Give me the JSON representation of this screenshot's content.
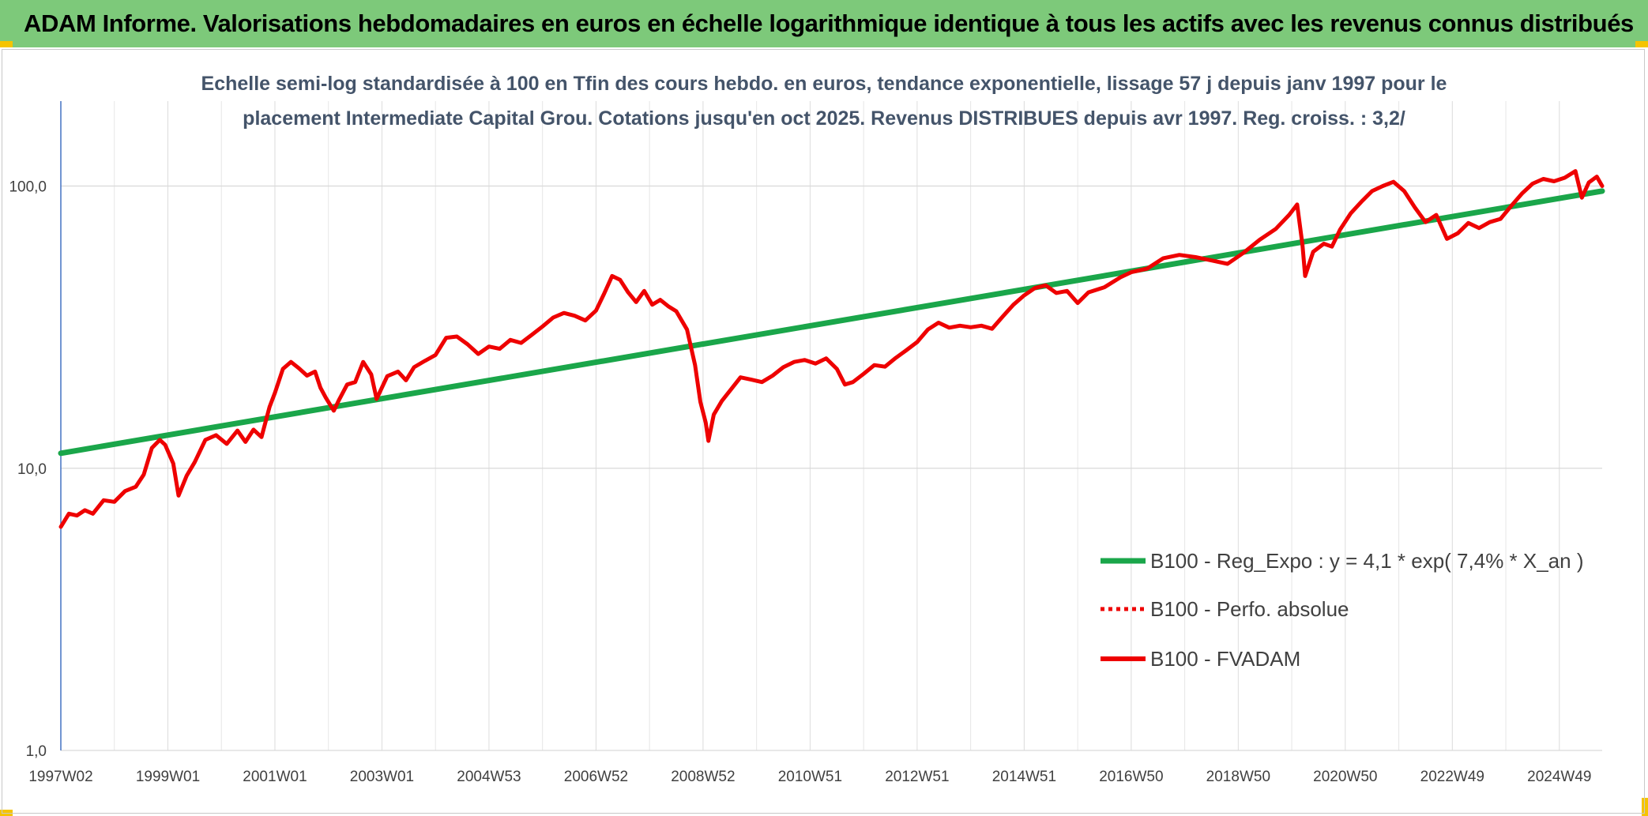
{
  "banner": {
    "title": "ADAM Informe. Valorisations hebdomadaires en euros en échelle logarithmique identique à tous les actifs avec les revenus connus distribués"
  },
  "colors": {
    "banner_bg": "#7dc97a",
    "regression": "#1aa64a",
    "series": "#ee0000",
    "corner_accent": "#f5c400"
  },
  "chart_data": {
    "type": "line",
    "title": "",
    "subtitle_lines": [
      "Echelle semi-log standardisée à 100 en Tfin des cours hebdo. en euros, tendance exponentielle, lissage 57 j depuis janv 1997 pour le",
      "placement Intermediate Capital Grou. Cotations jusqu'en oct 2025. Revenus DISTRIBUES depuis avr 1997. Reg. croiss. : 3,2/"
    ],
    "y_scale": "log",
    "ylim": [
      1,
      200
    ],
    "y_ticks": [
      {
        "value": 1,
        "label": "1,0"
      },
      {
        "value": 10,
        "label": "10,0"
      },
      {
        "value": 100,
        "label": "100,0"
      }
    ],
    "xlim": [
      1997.0,
      2025.8
    ],
    "x_ticks": [
      {
        "value": 1997.0,
        "label": "1997W02"
      },
      {
        "value": 1999.0,
        "label": "1999W01"
      },
      {
        "value": 2001.0,
        "label": "2001W01"
      },
      {
        "value": 2003.0,
        "label": "2003W01"
      },
      {
        "value": 2005.0,
        "label": "2004W53"
      },
      {
        "value": 2007.0,
        "label": "2006W52"
      },
      {
        "value": 2009.0,
        "label": "2008W52"
      },
      {
        "value": 2011.0,
        "label": "2010W51"
      },
      {
        "value": 2013.0,
        "label": "2012W51"
      },
      {
        "value": 2015.0,
        "label": "2014W51"
      },
      {
        "value": 2017.0,
        "label": "2016W50"
      },
      {
        "value": 2019.0,
        "label": "2018W50"
      },
      {
        "value": 2021.0,
        "label": "2020W50"
      },
      {
        "value": 2023.0,
        "label": "2022W49"
      },
      {
        "value": 2025.0,
        "label": "2024W49"
      }
    ],
    "grid": "vertical and horizontal",
    "legend_position": "bottom-right",
    "series": [
      {
        "name": "B100 - Reg_Expo : y = 4,1 * exp( 7,4% *  X_an )",
        "style": "solid-thick",
        "color": "#1aa64a",
        "points": [
          [
            1997.0,
            11.3
          ],
          [
            2025.8,
            96.0
          ]
        ]
      },
      {
        "name": "B100 - Perfo. absolue",
        "style": "dotted",
        "color": "#ee0000",
        "points": []
      },
      {
        "name": "B100 - FVADAM",
        "style": "solid",
        "color": "#ee0000",
        "points": [
          [
            1997.0,
            6.2
          ],
          [
            1997.15,
            6.9
          ],
          [
            1997.3,
            6.8
          ],
          [
            1997.45,
            7.1
          ],
          [
            1997.6,
            6.9
          ],
          [
            1997.8,
            7.7
          ],
          [
            1998.0,
            7.6
          ],
          [
            1998.2,
            8.3
          ],
          [
            1998.4,
            8.6
          ],
          [
            1998.55,
            9.5
          ],
          [
            1998.7,
            11.8
          ],
          [
            1998.85,
            12.6
          ],
          [
            1998.95,
            12.1
          ],
          [
            1999.1,
            10.4
          ],
          [
            1999.2,
            8.0
          ],
          [
            1999.35,
            9.4
          ],
          [
            1999.5,
            10.5
          ],
          [
            1999.7,
            12.6
          ],
          [
            1999.9,
            13.1
          ],
          [
            2000.1,
            12.2
          ],
          [
            2000.3,
            13.6
          ],
          [
            2000.45,
            12.4
          ],
          [
            2000.6,
            13.7
          ],
          [
            2000.75,
            12.9
          ],
          [
            2000.9,
            16.5
          ],
          [
            2001.0,
            18.5
          ],
          [
            2001.15,
            22.5
          ],
          [
            2001.3,
            23.8
          ],
          [
            2001.45,
            22.6
          ],
          [
            2001.6,
            21.3
          ],
          [
            2001.75,
            22.0
          ],
          [
            2001.85,
            19.3
          ],
          [
            2001.95,
            17.8
          ],
          [
            2002.1,
            16.0
          ],
          [
            2002.2,
            17.5
          ],
          [
            2002.35,
            19.8
          ],
          [
            2002.5,
            20.2
          ],
          [
            2002.65,
            23.8
          ],
          [
            2002.8,
            21.5
          ],
          [
            2002.9,
            17.6
          ],
          [
            2003.1,
            21.2
          ],
          [
            2003.3,
            22.0
          ],
          [
            2003.45,
            20.5
          ],
          [
            2003.6,
            22.8
          ],
          [
            2003.8,
            24.0
          ],
          [
            2004.0,
            25.2
          ],
          [
            2004.2,
            29.0
          ],
          [
            2004.4,
            29.3
          ],
          [
            2004.6,
            27.5
          ],
          [
            2004.8,
            25.4
          ],
          [
            2005.0,
            27.0
          ],
          [
            2005.2,
            26.5
          ],
          [
            2005.4,
            28.5
          ],
          [
            2005.6,
            27.8
          ],
          [
            2005.8,
            29.7
          ],
          [
            2006.0,
            31.8
          ],
          [
            2006.2,
            34.2
          ],
          [
            2006.4,
            35.5
          ],
          [
            2006.6,
            34.7
          ],
          [
            2006.8,
            33.4
          ],
          [
            2007.0,
            36.2
          ],
          [
            2007.15,
            41.5
          ],
          [
            2007.3,
            48.0
          ],
          [
            2007.45,
            46.5
          ],
          [
            2007.6,
            42.0
          ],
          [
            2007.75,
            38.8
          ],
          [
            2007.9,
            42.5
          ],
          [
            2008.05,
            38.0
          ],
          [
            2008.2,
            39.5
          ],
          [
            2008.35,
            37.5
          ],
          [
            2008.5,
            36.0
          ],
          [
            2008.7,
            31.0
          ],
          [
            2008.85,
            23.2
          ],
          [
            2008.95,
            17.2
          ],
          [
            2009.05,
            14.5
          ],
          [
            2009.1,
            12.5
          ],
          [
            2009.2,
            15.5
          ],
          [
            2009.35,
            17.3
          ],
          [
            2009.5,
            18.8
          ],
          [
            2009.7,
            21.0
          ],
          [
            2009.9,
            20.6
          ],
          [
            2010.1,
            20.2
          ],
          [
            2010.3,
            21.3
          ],
          [
            2010.5,
            22.8
          ],
          [
            2010.7,
            23.8
          ],
          [
            2010.9,
            24.2
          ],
          [
            2011.1,
            23.5
          ],
          [
            2011.3,
            24.5
          ],
          [
            2011.5,
            22.5
          ],
          [
            2011.65,
            19.8
          ],
          [
            2011.8,
            20.2
          ],
          [
            2012.0,
            21.6
          ],
          [
            2012.2,
            23.2
          ],
          [
            2012.4,
            22.9
          ],
          [
            2012.6,
            24.6
          ],
          [
            2012.8,
            26.2
          ],
          [
            2013.0,
            28.0
          ],
          [
            2013.2,
            31.0
          ],
          [
            2013.4,
            32.8
          ],
          [
            2013.6,
            31.5
          ],
          [
            2013.8,
            32.0
          ],
          [
            2014.0,
            31.6
          ],
          [
            2014.2,
            32.0
          ],
          [
            2014.4,
            31.2
          ],
          [
            2014.6,
            34.5
          ],
          [
            2014.8,
            38.0
          ],
          [
            2015.0,
            41.0
          ],
          [
            2015.2,
            43.5
          ],
          [
            2015.4,
            44.5
          ],
          [
            2015.6,
            41.8
          ],
          [
            2015.8,
            42.5
          ],
          [
            2016.0,
            38.5
          ],
          [
            2016.2,
            42.0
          ],
          [
            2016.5,
            43.8
          ],
          [
            2016.8,
            47.5
          ],
          [
            2017.0,
            49.5
          ],
          [
            2017.3,
            51.0
          ],
          [
            2017.6,
            55.5
          ],
          [
            2017.9,
            57.0
          ],
          [
            2018.2,
            56.0
          ],
          [
            2018.5,
            54.5
          ],
          [
            2018.8,
            53.0
          ],
          [
            2019.1,
            58.0
          ],
          [
            2019.4,
            64.5
          ],
          [
            2019.7,
            70.5
          ],
          [
            2019.95,
            79.0
          ],
          [
            2020.1,
            86.0
          ],
          [
            2020.2,
            62.0
          ],
          [
            2020.25,
            48.0
          ],
          [
            2020.4,
            58.5
          ],
          [
            2020.6,
            62.5
          ],
          [
            2020.75,
            61.0
          ],
          [
            2020.9,
            70.0
          ],
          [
            2021.1,
            80.0
          ],
          [
            2021.3,
            88.0
          ],
          [
            2021.5,
            96.0
          ],
          [
            2021.7,
            100.0
          ],
          [
            2021.9,
            103.5
          ],
          [
            2022.1,
            96.0
          ],
          [
            2022.3,
            84.0
          ],
          [
            2022.5,
            74.5
          ],
          [
            2022.7,
            79.0
          ],
          [
            2022.9,
            65.0
          ],
          [
            2023.1,
            68.0
          ],
          [
            2023.3,
            74.0
          ],
          [
            2023.5,
            71.0
          ],
          [
            2023.7,
            74.5
          ],
          [
            2023.9,
            76.5
          ],
          [
            2024.1,
            85.0
          ],
          [
            2024.3,
            94.0
          ],
          [
            2024.5,
            102.0
          ],
          [
            2024.7,
            106.0
          ],
          [
            2024.9,
            104.0
          ],
          [
            2025.1,
            107.0
          ],
          [
            2025.3,
            113.0
          ],
          [
            2025.42,
            91.0
          ],
          [
            2025.55,
            103.0
          ],
          [
            2025.7,
            108.0
          ],
          [
            2025.8,
            100.0
          ]
        ]
      }
    ]
  }
}
